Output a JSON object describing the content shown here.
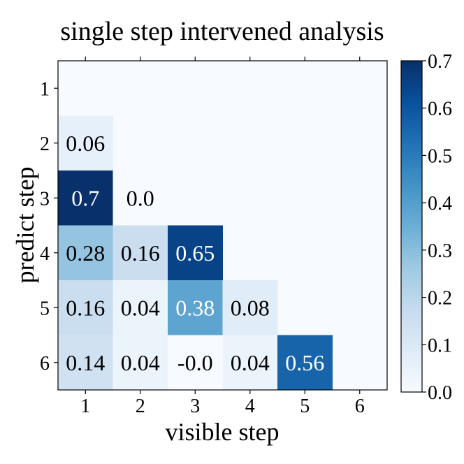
{
  "chart_data": {
    "type": "heatmap",
    "title": "single step intervened analysis",
    "xlabel": "visible step",
    "ylabel": "predict step",
    "x_categories": [
      "1",
      "2",
      "3",
      "4",
      "5",
      "6"
    ],
    "y_categories": [
      "1",
      "2",
      "3",
      "4",
      "5",
      "6"
    ],
    "cells": [
      {
        "visible": 1,
        "predict": 2,
        "value": 0.06,
        "label": "0.06"
      },
      {
        "visible": 1,
        "predict": 3,
        "value": 0.7,
        "label": "0.7"
      },
      {
        "visible": 2,
        "predict": 3,
        "value": 0.0,
        "label": "0.0"
      },
      {
        "visible": 1,
        "predict": 4,
        "value": 0.28,
        "label": "0.28"
      },
      {
        "visible": 2,
        "predict": 4,
        "value": 0.16,
        "label": "0.16"
      },
      {
        "visible": 3,
        "predict": 4,
        "value": 0.65,
        "label": "0.65"
      },
      {
        "visible": 1,
        "predict": 5,
        "value": 0.16,
        "label": "0.16"
      },
      {
        "visible": 2,
        "predict": 5,
        "value": 0.04,
        "label": "0.04"
      },
      {
        "visible": 3,
        "predict": 5,
        "value": 0.38,
        "label": "0.38"
      },
      {
        "visible": 4,
        "predict": 5,
        "value": 0.08,
        "label": "0.08"
      },
      {
        "visible": 1,
        "predict": 6,
        "value": 0.14,
        "label": "0.14"
      },
      {
        "visible": 2,
        "predict": 6,
        "value": 0.04,
        "label": "0.04"
      },
      {
        "visible": 3,
        "predict": 6,
        "value": 0.0,
        "label": "-0.0"
      },
      {
        "visible": 4,
        "predict": 6,
        "value": 0.04,
        "label": "0.04"
      },
      {
        "visible": 5,
        "predict": 6,
        "value": 0.56,
        "label": "0.56"
      }
    ],
    "colorbar": {
      "range": [
        0.0,
        0.7
      ],
      "ticks": [
        "0.0",
        "0.1",
        "0.2",
        "0.3",
        "0.4",
        "0.5",
        "0.6",
        "0.7"
      ],
      "colormap": "Blues",
      "low_color": "#f7fbff",
      "high_color": "#08306b"
    }
  }
}
